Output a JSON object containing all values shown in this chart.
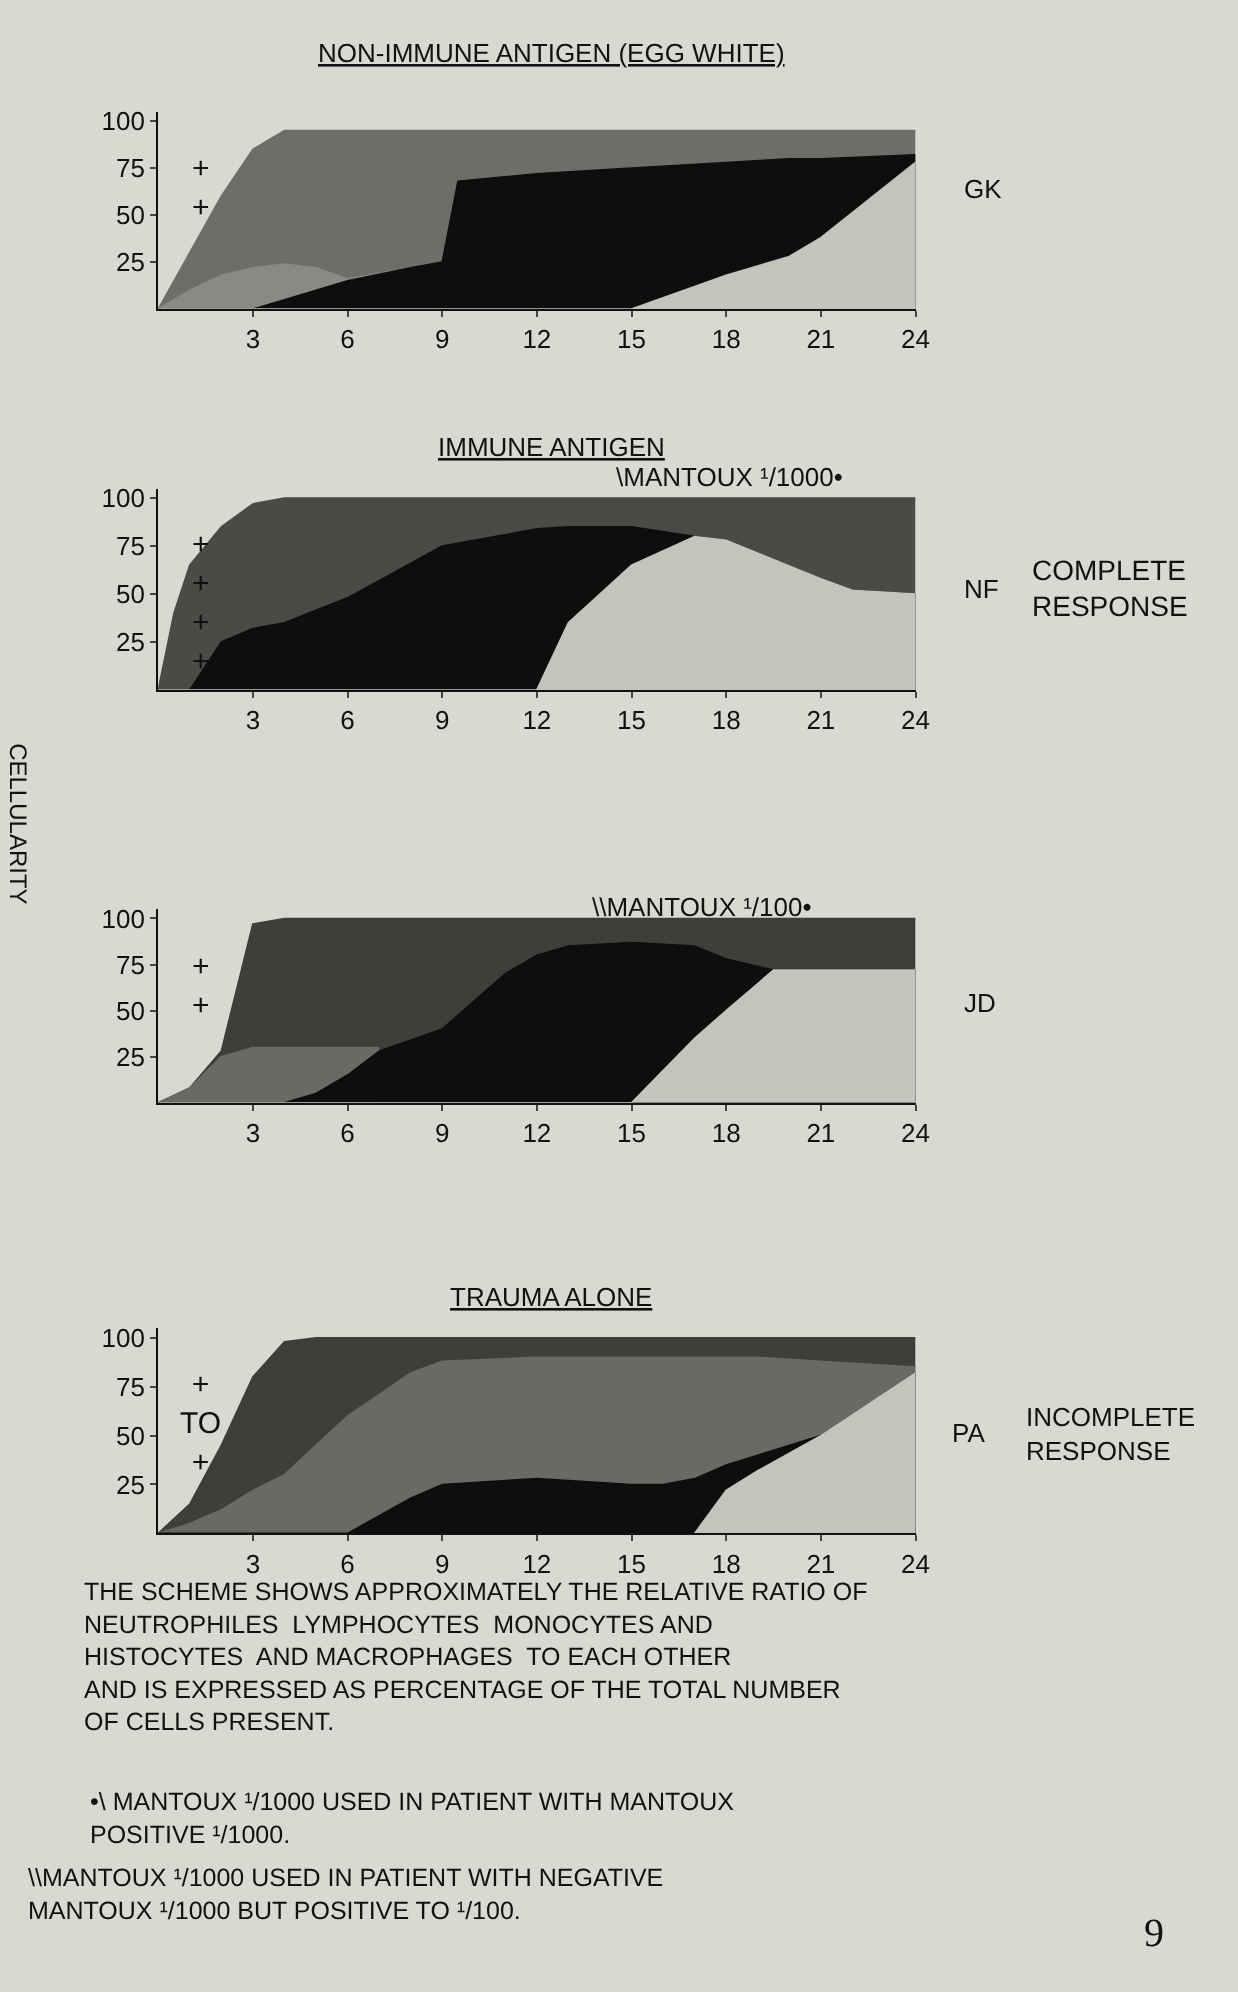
{
  "chart_data": [
    {
      "type": "area",
      "title": "NON-IMMUNE ANTIGEN (EGG WHITE)",
      "xlim": [
        0,
        24
      ],
      "xticks": [
        3,
        6,
        9,
        12,
        15,
        18,
        21,
        24
      ],
      "ylim": [
        0,
        105
      ],
      "yticks": [
        25,
        50,
        75,
        100
      ],
      "x": [
        0,
        1,
        2,
        3,
        4,
        5,
        6,
        8,
        9,
        9.5,
        12,
        15,
        18,
        20,
        21,
        24
      ],
      "series": [
        {
          "color": "#6e6e68",
          "values": [
            0,
            30,
            60,
            85,
            95,
            95,
            95,
            95,
            95,
            95,
            95,
            95,
            95,
            95,
            95,
            95
          ]
        },
        {
          "color": "#8a8a84",
          "values": [
            0,
            10,
            18,
            22,
            24,
            22,
            16,
            22,
            null,
            null,
            null,
            null,
            null,
            null,
            null,
            null
          ]
        },
        {
          "color": "#0e0e0e",
          "values": [
            0,
            0,
            0,
            0,
            5,
            10,
            15,
            22,
            25,
            68,
            72,
            75,
            78,
            80,
            80,
            82
          ]
        },
        {
          "color": "#c4c4bc",
          "values": [
            0,
            0,
            0,
            0,
            0,
            0,
            0,
            0,
            0,
            0,
            0,
            0,
            18,
            28,
            38,
            78
          ]
        }
      ],
      "annotations": [
        "+\n+",
        "GK"
      ]
    },
    {
      "type": "area",
      "title": "IMMUNE ANTIGEN",
      "xlim": [
        0,
        24
      ],
      "xticks": [
        3,
        6,
        9,
        12,
        15,
        18,
        21,
        24
      ],
      "ylim": [
        0,
        105
      ],
      "yticks": [
        25,
        50,
        75,
        100
      ],
      "x": [
        0,
        0.5,
        1,
        2,
        3,
        4,
        6,
        9,
        12,
        13,
        15,
        17,
        18,
        21,
        22,
        24
      ],
      "series": [
        {
          "color": "#4a4a46",
          "values": [
            0,
            40,
            65,
            85,
            97,
            100,
            100,
            100,
            100,
            100,
            100,
            100,
            100,
            100,
            100,
            100
          ]
        },
        {
          "color": "#0e0e0e",
          "values": [
            0,
            0,
            0,
            25,
            32,
            35,
            48,
            75,
            84,
            85,
            85,
            80,
            78,
            58,
            52,
            50
          ]
        },
        {
          "color": "#c4c4bc",
          "values": [
            0,
            0,
            0,
            0,
            0,
            0,
            0,
            0,
            0,
            35,
            65,
            80,
            78,
            58,
            52,
            50
          ]
        }
      ],
      "annotations": [
        "+\n+\n+\n+",
        "\\MANTOUX ¹/1000•",
        "NF",
        "COMPLETE\nRESPONSE",
        "CELLULARITY"
      ]
    },
    {
      "type": "area",
      "xlim": [
        0,
        24
      ],
      "xticks": [
        3,
        6,
        9,
        12,
        15,
        18,
        21,
        24
      ],
      "ylim": [
        0,
        105
      ],
      "yticks": [
        25,
        50,
        75,
        100
      ],
      "x": [
        0,
        1,
        2,
        3,
        4,
        5,
        6,
        7,
        9,
        11,
        12,
        13,
        15,
        17,
        18,
        19.5,
        21,
        24
      ],
      "series": [
        {
          "color": "#3e3e3a",
          "values": [
            0,
            8,
            28,
            97,
            100,
            100,
            100,
            100,
            100,
            100,
            100,
            100,
            100,
            100,
            100,
            100,
            100,
            100
          ]
        },
        {
          "color": "#6a6a64",
          "values": [
            0,
            8,
            25,
            30,
            30,
            30,
            30,
            30,
            null,
            null,
            null,
            null,
            null,
            null,
            null,
            null,
            null,
            null
          ]
        },
        {
          "color": "#0e0e0e",
          "values": [
            0,
            0,
            0,
            0,
            0,
            5,
            15,
            28,
            40,
            70,
            80,
            85,
            87,
            85,
            78,
            72,
            72,
            72
          ]
        },
        {
          "color": "#c4c4bc",
          "values": [
            0,
            0,
            0,
            0,
            0,
            0,
            0,
            0,
            0,
            0,
            0,
            0,
            0,
            35,
            50,
            72,
            72,
            72
          ]
        }
      ],
      "annotations": [
        "+\n+",
        "\\\\MANTOUX ¹/100•",
        "JD"
      ]
    },
    {
      "type": "area",
      "title": "TRAUMA ALONE",
      "xlim": [
        0,
        24
      ],
      "xticks": [
        3,
        6,
        9,
        12,
        15,
        18,
        21,
        24
      ],
      "ylim": [
        0,
        105
      ],
      "yticks": [
        25,
        50,
        75,
        100
      ],
      "x": [
        0,
        1,
        2,
        3,
        4,
        5,
        6,
        8,
        9,
        12,
        15,
        16,
        17,
        18,
        19,
        21,
        24
      ],
      "series": [
        {
          "color": "#3e3e3a",
          "values": [
            0,
            15,
            45,
            80,
            98,
            100,
            100,
            100,
            100,
            100,
            100,
            100,
            100,
            100,
            100,
            100,
            100
          ]
        },
        {
          "color": "#6a6a64",
          "values": [
            0,
            5,
            12,
            22,
            30,
            45,
            60,
            82,
            88,
            90,
            90,
            90,
            90,
            90,
            90,
            88,
            85
          ]
        },
        {
          "color": "#0e0e0e",
          "values": [
            0,
            0,
            0,
            0,
            0,
            0,
            0,
            18,
            25,
            28,
            25,
            25,
            28,
            35,
            40,
            50,
            82
          ]
        },
        {
          "color": "#c4c4bc",
          "values": [
            null,
            null,
            null,
            null,
            null,
            null,
            null,
            null,
            null,
            null,
            null,
            null,
            0,
            22,
            32,
            50,
            82
          ]
        }
      ],
      "annotations": [
        "+\nTO\n+",
        "PA",
        "INCOMPLETE\nRESPONSE",
        "THE SCHEME SHOWS APPROXIMATELY THE RELATIVE RATIO OF\nNEUTROPHILES  LYMPHOCYTES  MONOCYTES AND\nHISTOCYTES  AND MACROPHAGES  TO EACH OTHER\nAND IS EXPRESSED AS PERCENTAGE OF THE TOTAL NUMBER\nOF CELLS PRESENT.",
        "•\\ MANTOUX ¹/1000 USED IN PATIENT WITH MANTOUX\nPOSITIVE ¹/1000.",
        "\\\\MANTOUX ¹/1000 USED IN PATIENT WITH NEGATIVE\nMANTOUX ¹/1000 BUT POSITIVE TO ¹/100.",
        "9"
      ]
    }
  ]
}
